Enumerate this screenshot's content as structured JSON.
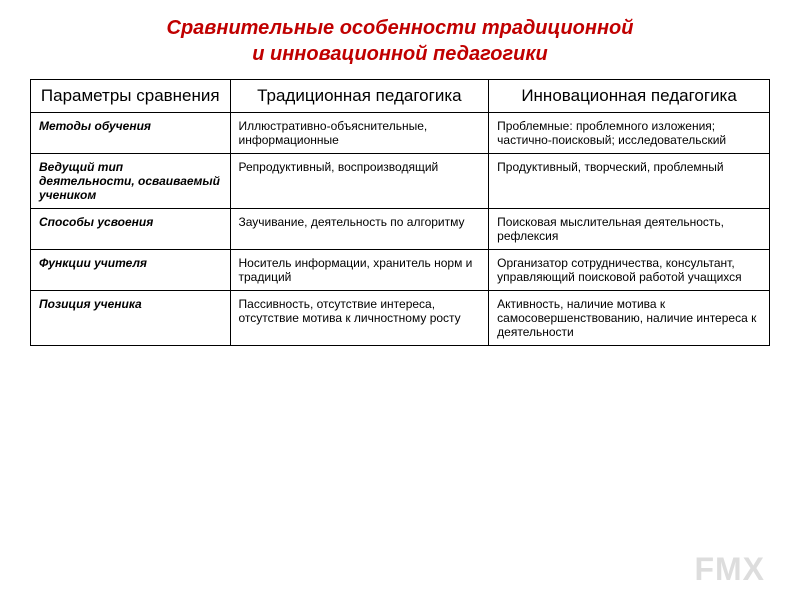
{
  "title": {
    "line1": "Сравнительные особенности традиционной",
    "line2": "и инновационной педагогики",
    "color": "#c00000",
    "fontsize": 20
  },
  "table": {
    "header_fontsize": 17,
    "body_fontsize": 12,
    "columns": [
      {
        "label": "Параметры сравнения",
        "width": "27%"
      },
      {
        "label": "Традиционная педагогика",
        "width": "35%"
      },
      {
        "label": "Инновационная педагогика",
        "width": "38%"
      }
    ],
    "rows": [
      {
        "param": "Методы обучения",
        "traditional": "Иллюстративно-объяснительные, информационные",
        "innovative": "Проблемные: проблемного изложения; частично-поисковый; исследовательский"
      },
      {
        "param": "Ведущий тип деятельности, осваиваемый учеником",
        "traditional": "Репродуктивный, воспроизводящий",
        "innovative": "Продуктивный, творческий, проблемный"
      },
      {
        "param": "Способы усвоения",
        "traditional": "Заучивание, деятельность по алгоритму",
        "innovative": "Поисковая мыслительная деятельность, рефлексия"
      },
      {
        "param": "Функции учителя",
        "traditional": "Носитель информации, хранитель норм и традиций",
        "innovative": "Организатор сотрудничества, консультант, управляющий поисковой работой учащихся"
      },
      {
        "param": "Позиция ученика",
        "traditional": "Пассивность, отсутствие интереса, отсутствие мотива к личностному росту",
        "innovative": "Активность, наличие мотива к самосовершенствованию, наличие интереса к деятельности"
      }
    ]
  },
  "watermark": "FMX"
}
